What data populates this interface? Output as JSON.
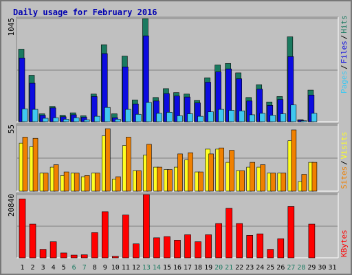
{
  "title": "Daily usage for February 2016",
  "days": [
    "1",
    "2",
    "3",
    "4",
    "5",
    "6",
    "7",
    "8",
    "9",
    "10",
    "11",
    "12",
    "13",
    "14",
    "15",
    "16",
    "17",
    "18",
    "19",
    "20",
    "21",
    "22",
    "23",
    "24",
    "25",
    "26",
    "27",
    "28",
    "29",
    "30",
    "31"
  ],
  "weekend_days": [
    "6",
    "7",
    "13",
    "14",
    "20",
    "21",
    "27",
    "28"
  ],
  "colors": {
    "hits": "#1a7a60",
    "files": "#0c0ce0",
    "pages": "#40c8f0",
    "visits": "#f08000",
    "sites": "#ffff20",
    "kbytes": "#ff0000",
    "weekday_label": "#000000",
    "weekend_label": "#1a7a60"
  },
  "chart_data": [
    {
      "type": "bar",
      "ylabel_max": "1045",
      "ylim": [
        0,
        1045
      ],
      "legend": {
        "pages": "Pages",
        "files": "Files",
        "hits": "Hits",
        "sep": "/"
      },
      "series": [
        {
          "name": "Hits",
          "values": [
            735,
            470,
            80,
            155,
            65,
            90,
            60,
            280,
            780,
            80,
            665,
            220,
            1045,
            245,
            335,
            295,
            280,
            215,
            445,
            575,
            590,
            495,
            245,
            375,
            200,
            255,
            860,
            20,
            320,
            0,
            0
          ]
        },
        {
          "name": "Files",
          "values": [
            645,
            390,
            65,
            140,
            50,
            70,
            45,
            255,
            690,
            40,
            555,
            180,
            870,
            210,
            285,
            260,
            250,
            190,
            400,
            505,
            535,
            435,
            210,
            330,
            165,
            225,
            660,
            15,
            270,
            0,
            0
          ]
        },
        {
          "name": "Pages",
          "values": [
            130,
            125,
            35,
            40,
            25,
            40,
            20,
            55,
            145,
            25,
            125,
            75,
            195,
            85,
            95,
            60,
            80,
            55,
            100,
            125,
            115,
            110,
            70,
            85,
            65,
            80,
            170,
            10,
            85,
            0,
            0
          ]
        }
      ]
    },
    {
      "type": "bar",
      "ylabel_max": "55",
      "ylim": [
        0,
        55
      ],
      "legend": {
        "sites": "Sites",
        "visits": "Visits",
        "sep": "/"
      },
      "series": [
        {
          "name": "Visits",
          "values": [
            45,
            44,
            15,
            22,
            16,
            15,
            13,
            15,
            52,
            12,
            45,
            17,
            39,
            20,
            18,
            31,
            32,
            16,
            31,
            36,
            34,
            17,
            24,
            22,
            15,
            15,
            51,
            14,
            24,
            0,
            0
          ]
        },
        {
          "name": "Sites",
          "values": [
            40,
            37,
            15,
            20,
            13,
            15,
            12,
            15,
            46,
            10,
            38,
            17,
            30,
            20,
            18,
            20,
            26,
            16,
            35,
            35,
            24,
            17,
            20,
            20,
            15,
            15,
            42,
            8,
            24,
            0,
            0
          ]
        }
      ]
    },
    {
      "type": "bar",
      "ylabel_max": "20840",
      "ylim": [
        0,
        20840
      ],
      "legend": {
        "kbytes": "KBytes"
      },
      "series": [
        {
          "name": "KBytes",
          "values": [
            19400,
            11100,
            2800,
            5300,
            1600,
            900,
            1000,
            8300,
            15200,
            500,
            14100,
            4600,
            20840,
            6600,
            7000,
            5800,
            7600,
            5300,
            7600,
            11300,
            16300,
            11300,
            7400,
            7900,
            2800,
            6300,
            16900,
            0,
            11100,
            0,
            0
          ]
        }
      ]
    }
  ]
}
